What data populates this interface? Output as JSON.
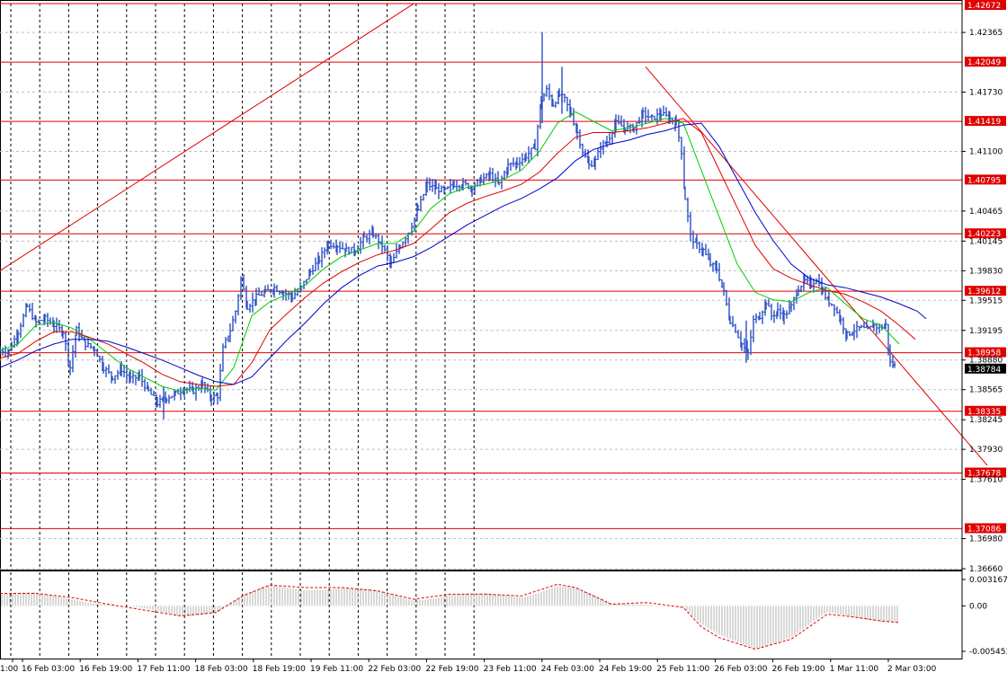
{
  "chart_data": {
    "type": "candlestick",
    "symbol_hint": "",
    "price_axis": {
      "range": [
        1.3666,
        1.42672
      ],
      "tick_labels": [
        "1.42365",
        "1.41730",
        "1.41100",
        "1.40465",
        "1.40145",
        "1.39830",
        "1.39515",
        "1.39195",
        "1.38880",
        "1.38565",
        "1.38245",
        "1.37930",
        "1.37610",
        "1.36980",
        "1.36660"
      ],
      "tick_values": [
        1.42365,
        1.4173,
        1.411,
        1.40465,
        1.40145,
        1.3983,
        1.39515,
        1.39195,
        1.3888,
        1.38565,
        1.38245,
        1.3793,
        1.3761,
        1.3698,
        1.3666
      ]
    },
    "current_price": {
      "label": "1.38784",
      "value": 1.38784
    },
    "horizontal_levels": [
      {
        "label": "1.42672",
        "value": 1.42672
      },
      {
        "label": "1.42049",
        "value": 1.42049
      },
      {
        "label": "1.41419",
        "value": 1.41419
      },
      {
        "label": "1.40795",
        "value": 1.40795
      },
      {
        "label": "1.40223",
        "value": 1.40223
      },
      {
        "label": "1.39612",
        "value": 1.39612
      },
      {
        "label": "1.38958",
        "value": 1.38958
      },
      {
        "label": "1.38335",
        "value": 1.38335
      },
      {
        "label": "1.37678",
        "value": 1.37678
      },
      {
        "label": "1.37086",
        "value": 1.37086
      }
    ],
    "time_axis": {
      "labels": [
        "1:00",
        "16 Feb 03:00",
        "16 Feb 19:00",
        "17 Feb 11:00",
        "18 Feb 03:00",
        "18 Feb 19:00",
        "19 Feb 11:00",
        "22 Feb 03:00",
        "22 Feb 19:00",
        "23 Feb 11:00",
        "24 Feb 03:00",
        "24 Feb 19:00",
        "25 Feb 11:00",
        "26 Feb 03:00",
        "26 Feb 19:00",
        "1 Mar 11:00",
        "2 Mar 03:00"
      ]
    },
    "close_path": [
      [
        0,
        1.3898
      ],
      [
        10,
        1.3898
      ],
      [
        20,
        1.3918
      ],
      [
        30,
        1.3945
      ],
      [
        40,
        1.3928
      ],
      [
        50,
        1.3932
      ],
      [
        60,
        1.3925
      ],
      [
        70,
        1.3918
      ],
      [
        78,
        1.388
      ],
      [
        85,
        1.392
      ],
      [
        95,
        1.3905
      ],
      [
        105,
        1.39
      ],
      [
        115,
        1.388
      ],
      [
        125,
        1.387
      ],
      [
        135,
        1.3878
      ],
      [
        145,
        1.3868
      ],
      [
        155,
        1.387
      ],
      [
        165,
        1.3855
      ],
      [
        175,
        1.3842
      ],
      [
        185,
        1.3848
      ],
      [
        195,
        1.3852
      ],
      [
        205,
        1.3858
      ],
      [
        215,
        1.3855
      ],
      [
        225,
        1.3862
      ],
      [
        235,
        1.3848
      ],
      [
        242,
        1.385
      ],
      [
        248,
        1.39
      ],
      [
        256,
        1.392
      ],
      [
        262,
        1.394
      ],
      [
        268,
        1.3975
      ],
      [
        275,
        1.3945
      ],
      [
        285,
        1.3955
      ],
      [
        295,
        1.396
      ],
      [
        305,
        1.3965
      ],
      [
        315,
        1.396
      ],
      [
        325,
        1.3955
      ],
      [
        335,
        1.3965
      ],
      [
        345,
        1.3982
      ],
      [
        355,
        1.3995
      ],
      [
        365,
        1.4012
      ],
      [
        375,
        1.401
      ],
      [
        385,
        1.4005
      ],
      [
        395,
        1.4005
      ],
      [
        405,
        1.4018
      ],
      [
        415,
        1.4022
      ],
      [
        425,
        1.401
      ],
      [
        435,
        1.399
      ],
      [
        445,
        1.401
      ],
      [
        455,
        1.4025
      ],
      [
        465,
        1.4048
      ],
      [
        475,
        1.4075
      ],
      [
        485,
        1.407
      ],
      [
        495,
        1.4068
      ],
      [
        505,
        1.4075
      ],
      [
        515,
        1.4075
      ],
      [
        525,
        1.4072
      ],
      [
        535,
        1.408
      ],
      [
        545,
        1.4085
      ],
      [
        555,
        1.4075
      ],
      [
        565,
        1.4095
      ],
      [
        575,
        1.4098
      ],
      [
        585,
        1.4105
      ],
      [
        595,
        1.4115
      ],
      [
        602,
        1.4165
      ],
      [
        608,
        1.4175
      ],
      [
        615,
        1.416
      ],
      [
        622,
        1.417
      ],
      [
        628,
        1.4165
      ],
      [
        635,
        1.415
      ],
      [
        642,
        1.413
      ],
      [
        648,
        1.411
      ],
      [
        655,
        1.4095
      ],
      [
        662,
        1.41
      ],
      [
        668,
        1.4115
      ],
      [
        675,
        1.412
      ],
      [
        685,
        1.414
      ],
      [
        695,
        1.4135
      ],
      [
        705,
        1.4135
      ],
      [
        715,
        1.415
      ],
      [
        725,
        1.4145
      ],
      [
        735,
        1.415
      ],
      [
        745,
        1.4145
      ],
      [
        752,
        1.414
      ],
      [
        758,
        1.411
      ],
      [
        762,
        1.406
      ],
      [
        768,
        1.402
      ],
      [
        775,
        1.401
      ],
      [
        782,
        1.4005
      ],
      [
        790,
        1.399
      ],
      [
        797,
        1.3985
      ],
      [
        805,
        1.396
      ],
      [
        812,
        1.393
      ],
      [
        818,
        1.392
      ],
      [
        825,
        1.3905
      ],
      [
        832,
        1.3895
      ],
      [
        838,
        1.393
      ],
      [
        845,
        1.3935
      ],
      [
        852,
        1.395
      ],
      [
        858,
        1.3935
      ],
      [
        865,
        1.394
      ],
      [
        872,
        1.3935
      ],
      [
        880,
        1.3945
      ],
      [
        888,
        1.3965
      ],
      [
        895,
        1.3972
      ],
      [
        902,
        1.3968
      ],
      [
        908,
        1.3975
      ],
      [
        915,
        1.396
      ],
      [
        922,
        1.395
      ],
      [
        928,
        1.3945
      ],
      [
        935,
        1.393
      ],
      [
        942,
        1.3915
      ],
      [
        950,
        1.392
      ],
      [
        958,
        1.3922
      ],
      [
        965,
        1.392
      ],
      [
        972,
        1.3925
      ],
      [
        978,
        1.3922
      ],
      [
        985,
        1.3925
      ],
      [
        990,
        1.3885
      ],
      [
        995,
        1.3882
      ],
      [
        998,
        1.38784
      ]
    ],
    "moving_averages": [
      {
        "color": "#00cc00",
        "points": [
          [
            0,
            1.3898
          ],
          [
            20,
            1.3905
          ],
          [
            40,
            1.3925
          ],
          [
            60,
            1.3928
          ],
          [
            80,
            1.3922
          ],
          [
            100,
            1.391
          ],
          [
            120,
            1.3895
          ],
          [
            140,
            1.388
          ],
          [
            160,
            1.387
          ],
          [
            180,
            1.386
          ],
          [
            200,
            1.3855
          ],
          [
            220,
            1.3858
          ],
          [
            240,
            1.3856
          ],
          [
            260,
            1.388
          ],
          [
            280,
            1.3935
          ],
          [
            300,
            1.395
          ],
          [
            320,
            1.3958
          ],
          [
            340,
            1.3968
          ],
          [
            360,
            1.3985
          ],
          [
            380,
            1.3998
          ],
          [
            400,
            1.4005
          ],
          [
            420,
            1.4012
          ],
          [
            440,
            1.4012
          ],
          [
            460,
            1.4025
          ],
          [
            480,
            1.405
          ],
          [
            500,
            1.4065
          ],
          [
            520,
            1.4072
          ],
          [
            540,
            1.4075
          ],
          [
            560,
            1.408
          ],
          [
            580,
            1.409
          ],
          [
            600,
            1.411
          ],
          [
            620,
            1.414
          ],
          [
            640,
            1.4152
          ],
          [
            660,
            1.4142
          ],
          [
            680,
            1.4132
          ],
          [
            700,
            1.4135
          ],
          [
            720,
            1.414
          ],
          [
            740,
            1.4145
          ],
          [
            760,
            1.414
          ],
          [
            780,
            1.409
          ],
          [
            800,
            1.404
          ],
          [
            820,
            1.399
          ],
          [
            840,
            1.396
          ],
          [
            860,
            1.3952
          ],
          [
            880,
            1.395
          ],
          [
            900,
            1.396
          ],
          [
            920,
            1.3965
          ],
          [
            940,
            1.3948
          ],
          [
            960,
            1.3932
          ],
          [
            980,
            1.3925
          ],
          [
            1000,
            1.3905
          ]
        ]
      },
      {
        "color": "#e00000",
        "points": [
          [
            0,
            1.389
          ],
          [
            20,
            1.3895
          ],
          [
            40,
            1.3908
          ],
          [
            60,
            1.3918
          ],
          [
            80,
            1.3918
          ],
          [
            100,
            1.3912
          ],
          [
            120,
            1.3905
          ],
          [
            140,
            1.3895
          ],
          [
            160,
            1.3885
          ],
          [
            180,
            1.3873
          ],
          [
            200,
            1.3865
          ],
          [
            220,
            1.3862
          ],
          [
            240,
            1.386
          ],
          [
            260,
            1.3862
          ],
          [
            280,
            1.3885
          ],
          [
            300,
            1.392
          ],
          [
            320,
            1.3938
          ],
          [
            340,
            1.3955
          ],
          [
            360,
            1.397
          ],
          [
            380,
            1.3982
          ],
          [
            400,
            1.3992
          ],
          [
            420,
            1.4
          ],
          [
            440,
            1.4005
          ],
          [
            460,
            1.4012
          ],
          [
            480,
            1.4028
          ],
          [
            500,
            1.4045
          ],
          [
            520,
            1.4055
          ],
          [
            540,
            1.4062
          ],
          [
            560,
            1.4068
          ],
          [
            580,
            1.4075
          ],
          [
            600,
            1.4088
          ],
          [
            620,
            1.4108
          ],
          [
            640,
            1.4125
          ],
          [
            660,
            1.413
          ],
          [
            680,
            1.413
          ],
          [
            700,
            1.4132
          ],
          [
            720,
            1.4135
          ],
          [
            740,
            1.414
          ],
          [
            760,
            1.4145
          ],
          [
            780,
            1.413
          ],
          [
            800,
            1.409
          ],
          [
            820,
            1.405
          ],
          [
            840,
            1.401
          ],
          [
            860,
            1.3985
          ],
          [
            880,
            1.3975
          ],
          [
            900,
            1.3968
          ],
          [
            920,
            1.3962
          ],
          [
            940,
            1.3958
          ],
          [
            960,
            1.395
          ],
          [
            980,
            1.394
          ],
          [
            1000,
            1.3925
          ],
          [
            1018,
            1.391
          ]
        ]
      },
      {
        "color": "#0000d0",
        "points": [
          [
            0,
            1.388
          ],
          [
            20,
            1.3888
          ],
          [
            40,
            1.3898
          ],
          [
            60,
            1.3905
          ],
          [
            80,
            1.391
          ],
          [
            100,
            1.391
          ],
          [
            120,
            1.3908
          ],
          [
            140,
            1.3902
          ],
          [
            160,
            1.3895
          ],
          [
            180,
            1.3888
          ],
          [
            200,
            1.388
          ],
          [
            220,
            1.3872
          ],
          [
            240,
            1.3865
          ],
          [
            260,
            1.3862
          ],
          [
            280,
            1.387
          ],
          [
            300,
            1.389
          ],
          [
            320,
            1.391
          ],
          [
            340,
            1.3928
          ],
          [
            360,
            1.3948
          ],
          [
            380,
            1.3965
          ],
          [
            400,
            1.3978
          ],
          [
            420,
            1.3988
          ],
          [
            440,
            1.3992
          ],
          [
            460,
            1.3998
          ],
          [
            480,
            1.4008
          ],
          [
            500,
            1.402
          ],
          [
            520,
            1.4032
          ],
          [
            540,
            1.4042
          ],
          [
            560,
            1.4052
          ],
          [
            580,
            1.406
          ],
          [
            600,
            1.407
          ],
          [
            620,
            1.4082
          ],
          [
            640,
            1.41
          ],
          [
            660,
            1.4112
          ],
          [
            680,
            1.4118
          ],
          [
            700,
            1.4122
          ],
          [
            720,
            1.4128
          ],
          [
            740,
            1.4132
          ],
          [
            760,
            1.4138
          ],
          [
            780,
            1.414
          ],
          [
            800,
            1.4115
          ],
          [
            820,
            1.408
          ],
          [
            840,
            1.4045
          ],
          [
            860,
            1.4015
          ],
          [
            880,
            1.399
          ],
          [
            900,
            1.3975
          ],
          [
            920,
            1.3968
          ],
          [
            940,
            1.3965
          ],
          [
            960,
            1.396
          ],
          [
            980,
            1.3955
          ],
          [
            1000,
            1.3948
          ],
          [
            1020,
            1.394
          ],
          [
            1030,
            1.3932
          ]
        ]
      }
    ],
    "trendlines": [
      {
        "color": "#e00000",
        "from": [
          0,
          1.3983
        ],
        "to": [
          460,
          1.4267
        ]
      },
      {
        "color": "#e00000",
        "from": [
          718,
          1.42
        ],
        "to": [
          1098,
          1.3776
        ]
      }
    ],
    "indicator": {
      "tick_labels": [
        "0.003167",
        "0.00",
        "-0.005453"
      ],
      "tick_values": [
        0.003167,
        0.0,
        -0.005453
      ],
      "signal_points": [
        [
          0,
          0.0015
        ],
        [
          40,
          0.0015
        ],
        [
          80,
          0.001
        ],
        [
          120,
          0.0002
        ],
        [
          160,
          -0.0005
        ],
        [
          200,
          -0.0012
        ],
        [
          240,
          -0.0008
        ],
        [
          270,
          0.0012
        ],
        [
          300,
          0.0025
        ],
        [
          340,
          0.0022
        ],
        [
          380,
          0.0022
        ],
        [
          420,
          0.0018
        ],
        [
          460,
          0.0008
        ],
        [
          500,
          0.0014
        ],
        [
          540,
          0.0014
        ],
        [
          580,
          0.0012
        ],
        [
          620,
          0.0026
        ],
        [
          640,
          0.0022
        ],
        [
          680,
          0.0002
        ],
        [
          720,
          0.0004
        ],
        [
          760,
          -0.0002
        ],
        [
          780,
          -0.0025
        ],
        [
          800,
          -0.0038
        ],
        [
          840,
          -0.0052
        ],
        [
          880,
          -0.004
        ],
        [
          920,
          -0.001
        ],
        [
          940,
          -0.0012
        ],
        [
          980,
          -0.0018
        ],
        [
          1000,
          -0.002
        ]
      ]
    }
  }
}
